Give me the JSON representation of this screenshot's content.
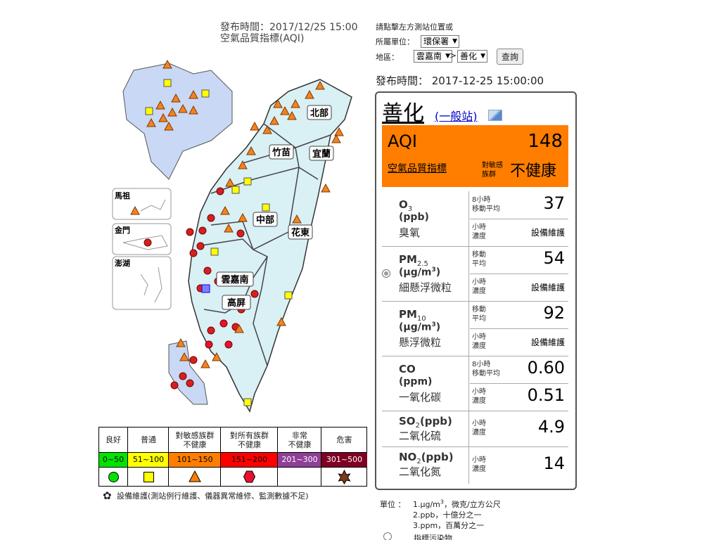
{
  "header": {
    "publish_time": "發布時間：2017/12/25 15:00",
    "title": "空氣品質指標(AQI)"
  },
  "map": {
    "regions": [
      "北部",
      "竹苗",
      "宜蘭",
      "中部",
      "花東",
      "雲嘉南",
      "高屏"
    ],
    "islands": [
      "馬祖",
      "金門",
      "澎湖"
    ]
  },
  "legend": {
    "levels": [
      {
        "lines": [
          "良好"
        ],
        "range": "0~50"
      },
      {
        "lines": [
          "普通"
        ],
        "range": "51~100"
      },
      {
        "lines": [
          "對敏感族群",
          "不健康"
        ],
        "range": "101~150"
      },
      {
        "lines": [
          "對所有族群",
          "不健康"
        ],
        "range": "151~200"
      },
      {
        "lines": [
          "非常",
          "不健康"
        ],
        "range": "201~300"
      },
      {
        "lines": [
          "危害"
        ],
        "range": "301~500"
      }
    ],
    "maintenance_note": "設備維護(測站例行維護、儀器異常維修、監測數據不足)"
  },
  "controls": {
    "hint": "請點擊左方測站位置或",
    "agency_label": "所屬單位：",
    "agency": "環保署",
    "area_label": "地區：",
    "area": "雲嘉南",
    "separator": ">",
    "station": "善化",
    "button": "查詢"
  },
  "publish_time": "發布時間： 2017-12-25 15:00:00",
  "station": {
    "name": "善化",
    "type": "(一般站)",
    "aqi_label": "AQI",
    "aqi": 148,
    "aqi_link": "空氣品質指標",
    "group": [
      "對敏感",
      "族群"
    ],
    "status": "不健康"
  },
  "pollutants": [
    {
      "symbol": "O",
      "sub": "3",
      "unit": "(ppb)",
      "name": "臭氧",
      "readings": [
        {
          "lines": [
            "8小時",
            "移動平均"
          ],
          "value": 37
        },
        {
          "lines": [
            "小時",
            "濃度"
          ],
          "value": "設備維護"
        }
      ]
    },
    {
      "symbol": "PM",
      "sub": "2.5",
      "unit": "(μg/m",
      "unit_sup": "3",
      "unit_close": ")",
      "name": "細懸浮微粒",
      "readings": [
        {
          "lines": [
            "移動",
            "平均"
          ],
          "value": 54
        },
        {
          "lines": [
            "小時",
            "濃度"
          ],
          "value": "設備維護"
        }
      ]
    },
    {
      "symbol": "PM",
      "sub": "10",
      "unit": "(μg/m",
      "unit_sup": "3",
      "unit_close": ")",
      "name": "懸浮微粒",
      "readings": [
        {
          "lines": [
            "移動",
            "平均"
          ],
          "value": 92
        },
        {
          "lines": [
            "小時",
            "濃度"
          ],
          "value": "設備維護"
        }
      ]
    },
    {
      "symbol": "CO",
      "unit": "(ppm)",
      "name": "一氧化碳",
      "readings": [
        {
          "lines": [
            "8小時",
            "移動平均"
          ],
          "value": "0.60"
        },
        {
          "lines": [
            "小時",
            "濃度"
          ],
          "value": 0.51
        }
      ]
    },
    {
      "symbol": "SO",
      "sub": "2",
      "unit": "(ppb)",
      "inline_unit": true,
      "name": "二氧化硫",
      "readings": [
        {
          "lines": [
            "小時",
            "濃度"
          ],
          "value": 4.9
        }
      ]
    },
    {
      "symbol": "NO",
      "sub": "2",
      "unit": "(ppb)",
      "inline_unit": true,
      "name": "二氧化氮",
      "readings": [
        {
          "lines": [
            "小時",
            "濃度"
          ],
          "value": 14
        }
      ]
    }
  ],
  "units": {
    "label": "單位 ：",
    "items": [
      {
        "text": "1.μg/m",
        "sup": "3",
        "rest": "，微克/立方公尺"
      },
      {
        "text": "2.ppb，十億分之一"
      },
      {
        "text": "3.ppm，百萬分之一"
      }
    ],
    "pollutant_note": "指標污染物"
  }
}
